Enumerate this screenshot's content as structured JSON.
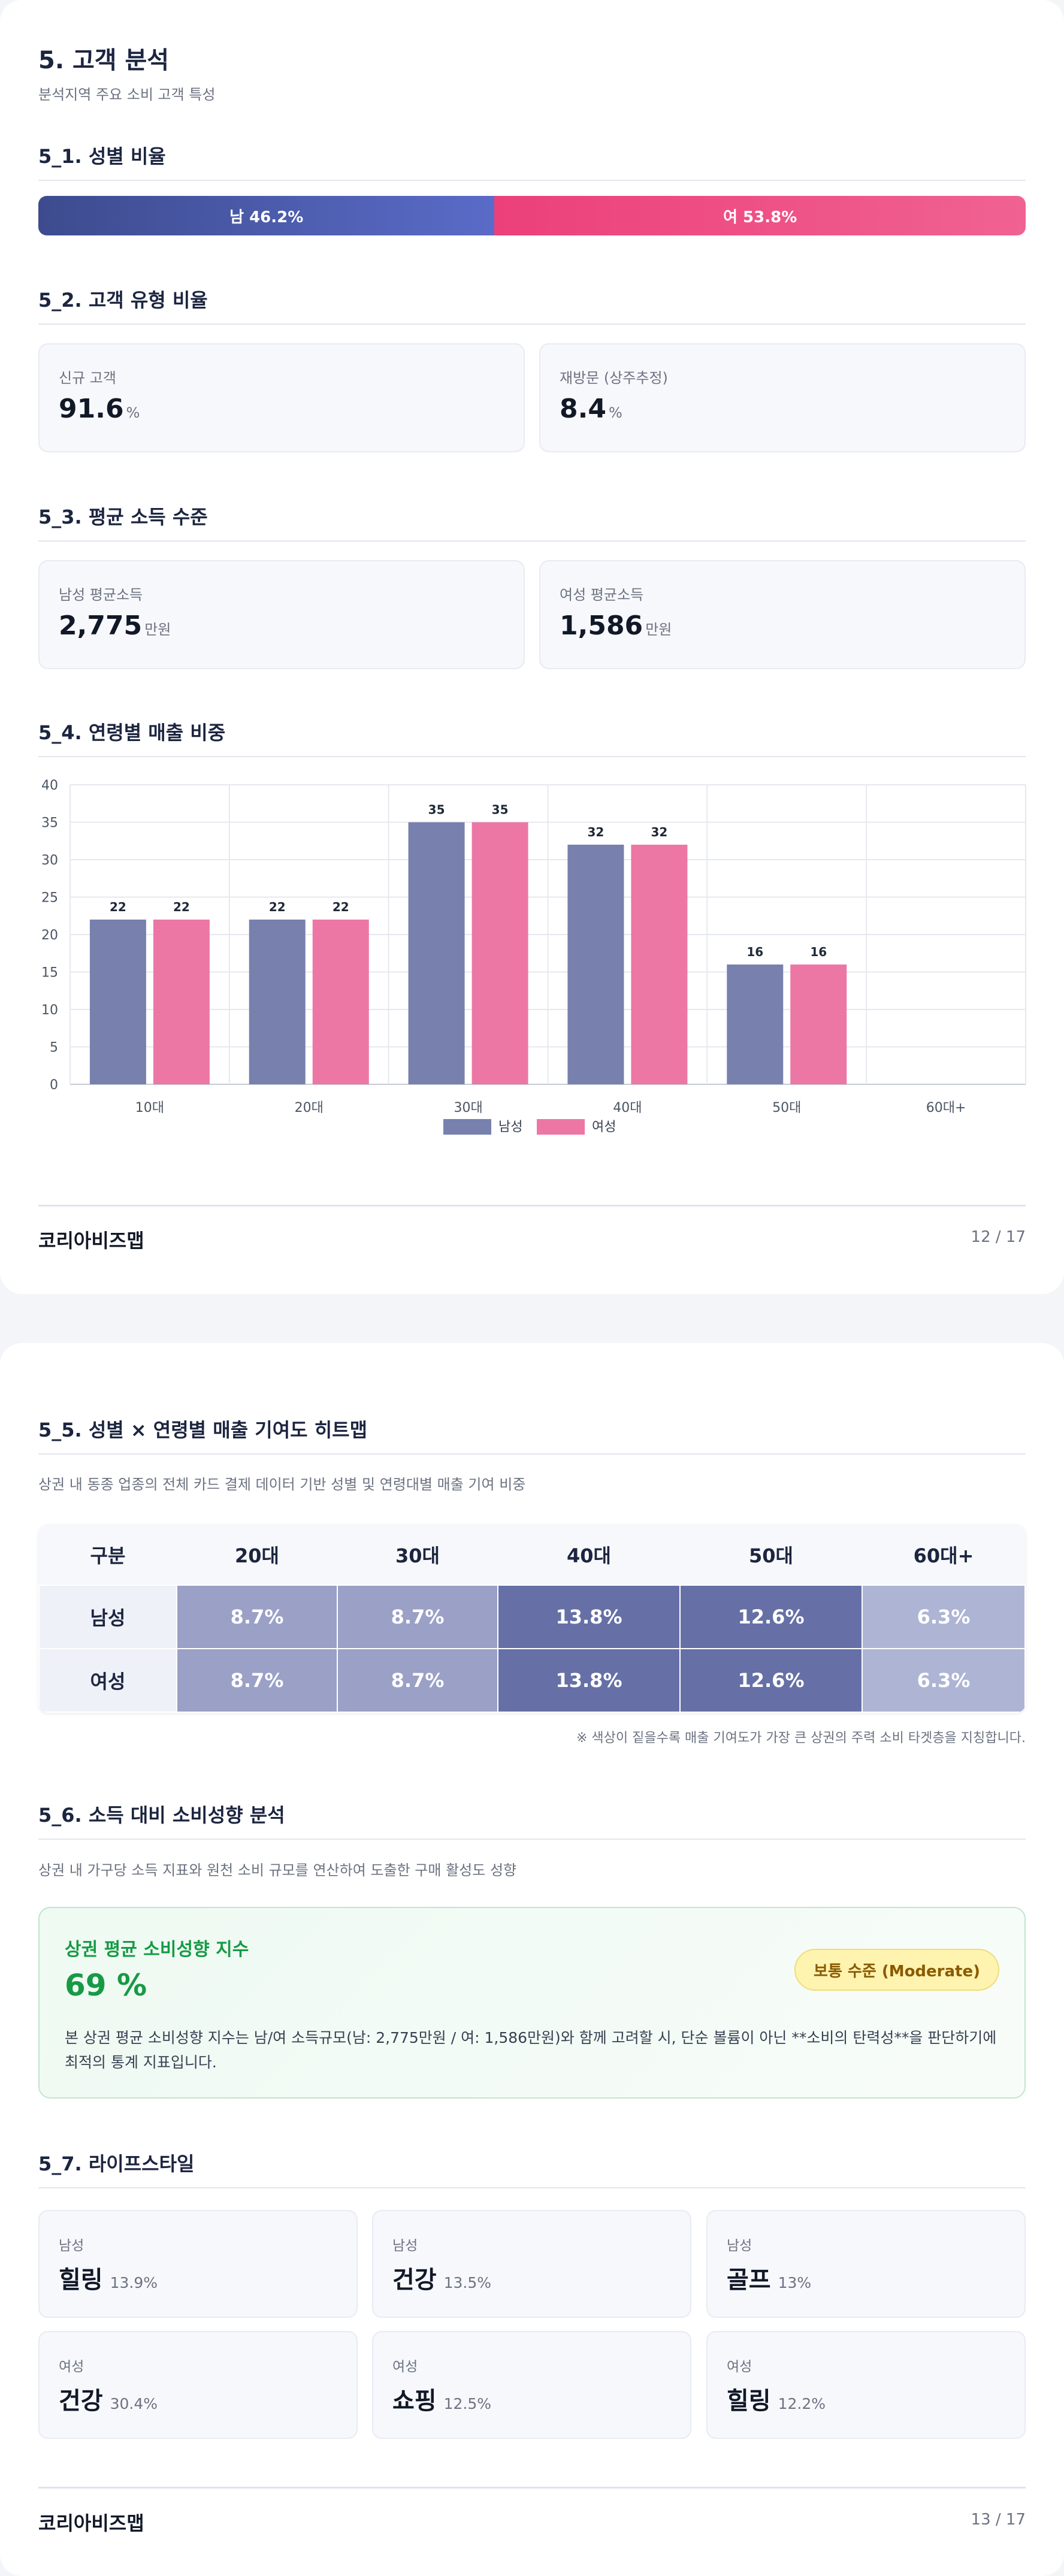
{
  "page1": {
    "title": "5. 고객 분석",
    "subtitle": "분석지역 주요 소비 고객 특성",
    "gender": {
      "title": "5_1. 성별 비율",
      "male_label": "남 46.2%",
      "female_label": "여 53.8%",
      "male_share": 46.2,
      "female_share": 53.8,
      "male_color": "#4a5aad",
      "female_color": "#ec4f85"
    },
    "customer_type": {
      "title": "5_2. 고객 유형 비율",
      "new_label": "신규 고객",
      "new_value": "91.6",
      "new_unit": "%",
      "return_label": "재방문 (상주추정)",
      "return_value": "8.4",
      "return_unit": "%"
    },
    "income": {
      "title": "5_3. 평균 소득 수준",
      "male_label": "남성 평균소득",
      "male_value": "2,775",
      "male_unit": "만원",
      "female_label": "여성 평균소득",
      "female_value": "1,586",
      "female_unit": "만원"
    },
    "age_sales_title": "5_4. 연령별 매출 비중",
    "footer": {
      "brand": "코리아비즈맵",
      "page": "12 / 17"
    }
  },
  "chart_data": {
    "type": "bar",
    "categories": [
      "10대",
      "20대",
      "30대",
      "40대",
      "50대",
      "60대+"
    ],
    "series": [
      {
        "name": "남성",
        "values": [
          22,
          22,
          35,
          32,
          16,
          0
        ],
        "labels": [
          "22",
          "22",
          "35",
          "32",
          "16",
          ""
        ],
        "color": "#7880ad"
      },
      {
        "name": "여성",
        "values": [
          22,
          22,
          35,
          32,
          16,
          0
        ],
        "labels": [
          "22",
          "22",
          "35",
          "32",
          "16",
          ""
        ],
        "color": "#ec77a4"
      }
    ],
    "ylim": [
      0,
      40
    ],
    "yticks": [
      "0",
      "5",
      "10",
      "15",
      "20",
      "25",
      "30",
      "35",
      "40"
    ],
    "grid": true,
    "legend": "bottom"
  },
  "page2": {
    "heatmap": {
      "title": "5_5. 성별 × 연령별 매출 기여도 히트맵",
      "desc": "상권 내 동종 업종의 전체 카드 결제 데이터 기반 성별 및 연령대별 매출 기여 비중",
      "corner": "구분",
      "columns": [
        "20대",
        "30대",
        "40대",
        "50대",
        "60대+"
      ],
      "rows": [
        {
          "label": "남성",
          "cells": [
            "8.7%",
            "8.7%",
            "13.8%",
            "12.6%",
            "6.3%"
          ]
        },
        {
          "label": "여성",
          "cells": [
            "8.7%",
            "8.7%",
            "13.8%",
            "12.6%",
            "6.3%"
          ]
        }
      ],
      "note": "※ 색상이 짙을수록 매출 기여도가 가장 큰 상권의 주력 소비 타겟층을 지칭합니다."
    },
    "propensity": {
      "title": "5_6. 소득 대비 소비성향 분석",
      "desc": "상권 내 가구당 소득 지표와 원천 소비 규모를 연산하여 도출한 구매 활성도 성향",
      "box_title": "상권 평균 소비성향 지수",
      "value": "69 %",
      "badge": "보통 수준 (Moderate)",
      "body": "본 상권 평균 소비성향 지수는 남/여 소득규모(남: 2,775만원 / 여: 1,586만원)와 함께 고려할 시, 단순 볼륨이 아닌 **소비의 탄력성**을 판단하기에 최적의 통계 지표입니다."
    },
    "lifestyle": {
      "title": "5_7. 라이프스타일",
      "items": [
        {
          "gender": "남성",
          "keyword": "힐링",
          "pct": "13.9%"
        },
        {
          "gender": "남성",
          "keyword": "건강",
          "pct": "13.5%"
        },
        {
          "gender": "남성",
          "keyword": "골프",
          "pct": "13%"
        },
        {
          "gender": "여성",
          "keyword": "건강",
          "pct": "30.4%"
        },
        {
          "gender": "여성",
          "keyword": "쇼핑",
          "pct": "12.5%"
        },
        {
          "gender": "여성",
          "keyword": "힐링",
          "pct": "12.2%"
        }
      ]
    },
    "footer": {
      "brand": "코리아비즈맵",
      "page": "13 / 17"
    }
  }
}
